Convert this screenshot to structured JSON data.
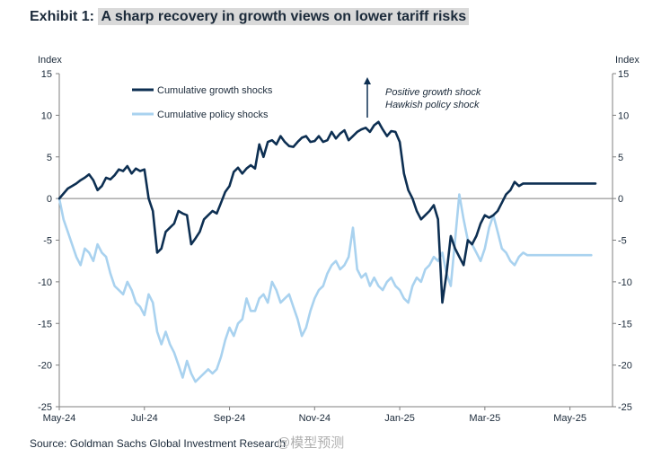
{
  "exhibit_label": "Exhibit 1:",
  "title": "A sharp recovery in growth views on lower tariff risks",
  "source": "Source: Goldman Sachs Global Investment Research",
  "watermark": "@模型预测",
  "chart_data": {
    "type": "line",
    "title": "A sharp recovery in growth views on lower tariff risks",
    "ylabel_left": "Index",
    "ylabel_right": "Index",
    "ylim": [
      -25,
      15
    ],
    "yticks": [
      15,
      10,
      5,
      0,
      -5,
      -10,
      -15,
      -20,
      -25
    ],
    "xlim": [
      0,
      13
    ],
    "xticks": [
      {
        "label": "May-24",
        "x": 0
      },
      {
        "label": "Jul-24",
        "x": 2
      },
      {
        "label": "Sep-24",
        "x": 4
      },
      {
        "label": "Nov-24",
        "x": 6
      },
      {
        "label": "Jan-25",
        "x": 8
      },
      {
        "label": "Mar-25",
        "x": 10
      },
      {
        "label": "May-25",
        "x": 12
      }
    ],
    "annotation_lines": [
      "Positive growth shock",
      "Hawkish policy shock"
    ],
    "colors": {
      "growth": "#0d2f52",
      "policy": "#a9d2ef",
      "axis": "#7f7f7f",
      "text": "#1b2a3a"
    },
    "series": [
      {
        "name": "Cumulative growth shocks",
        "x": [
          0,
          0.1,
          0.2,
          0.3,
          0.4,
          0.5,
          0.6,
          0.7,
          0.8,
          0.9,
          1.0,
          1.1,
          1.2,
          1.3,
          1.4,
          1.5,
          1.6,
          1.7,
          1.8,
          1.9,
          2.0,
          2.1,
          2.2,
          2.3,
          2.4,
          2.5,
          2.6,
          2.7,
          2.8,
          2.9,
          3.0,
          3.1,
          3.2,
          3.3,
          3.4,
          3.5,
          3.6,
          3.7,
          3.8,
          3.9,
          4.0,
          4.1,
          4.2,
          4.3,
          4.4,
          4.5,
          4.6,
          4.7,
          4.8,
          4.9,
          5.0,
          5.1,
          5.2,
          5.3,
          5.4,
          5.5,
          5.6,
          5.7,
          5.8,
          5.9,
          6.0,
          6.1,
          6.2,
          6.3,
          6.4,
          6.5,
          6.6,
          6.7,
          6.8,
          6.9,
          7.0,
          7.1,
          7.2,
          7.3,
          7.4,
          7.5,
          7.6,
          7.7,
          7.8,
          7.9,
          8.0,
          8.1,
          8.2,
          8.3,
          8.4,
          8.5,
          8.6,
          8.7,
          8.8,
          8.9,
          9.0,
          9.1,
          9.2,
          9.3,
          9.4,
          9.5,
          9.6,
          9.7,
          9.8,
          9.9,
          10.0,
          10.1,
          10.2,
          10.3,
          10.4,
          10.5,
          10.6,
          10.7,
          10.8,
          10.9,
          11.0,
          11.1,
          11.2,
          11.3,
          11.4,
          11.5,
          11.6,
          11.7,
          11.8,
          11.9,
          12.0,
          12.1,
          12.2,
          12.3,
          12.4,
          12.5,
          12.6
        ],
        "values": [
          0,
          0.6,
          1.2,
          1.5,
          1.8,
          2.2,
          2.5,
          2.9,
          2.2,
          1.0,
          1.5,
          2.5,
          2.3,
          2.8,
          3.5,
          3.3,
          3.9,
          3.0,
          3.6,
          3.3,
          3.5,
          0.0,
          -1.5,
          -6.5,
          -6.0,
          -4.0,
          -3.5,
          -3.0,
          -1.5,
          -1.8,
          -2.0,
          -5.5,
          -4.8,
          -4.0,
          -2.5,
          -2.0,
          -1.5,
          -1.8,
          -0.5,
          0.8,
          1.5,
          3.2,
          3.7,
          3.0,
          3.6,
          4.0,
          3.6,
          6.5,
          5.0,
          6.8,
          7.0,
          6.5,
          7.5,
          6.8,
          6.3,
          6.2,
          6.8,
          7.3,
          7.5,
          6.8,
          6.9,
          7.5,
          6.8,
          7.0,
          8.0,
          7.2,
          7.8,
          8.2,
          7.0,
          7.5,
          8.0,
          8.3,
          8.5,
          8.0,
          8.8,
          9.2,
          8.3,
          7.5,
          8.1,
          8.0,
          6.8,
          3.0,
          1.0,
          0.0,
          -1.5,
          -2.5,
          -2.0,
          -1.5,
          -0.8,
          -2.5,
          -12.5,
          -9.0,
          -4.5,
          -6.0,
          -7.0,
          -8.0,
          -5.0,
          -5.5,
          -4.5,
          -3.0,
          -2.0,
          -2.3,
          -2.0,
          -1.5,
          -0.5,
          0.5,
          1.0,
          2.0,
          1.5,
          1.8,
          1.8,
          1.8,
          1.8,
          1.8,
          1.8,
          1.8,
          1.8,
          1.8,
          1.8,
          1.8,
          1.8,
          1.8,
          1.8,
          1.8,
          1.8,
          1.8,
          1.8
        ]
      },
      {
        "name": "Cumulative policy shocks",
        "x": [
          0,
          0.1,
          0.2,
          0.3,
          0.4,
          0.5,
          0.6,
          0.7,
          0.8,
          0.9,
          1.0,
          1.1,
          1.2,
          1.3,
          1.4,
          1.5,
          1.6,
          1.7,
          1.8,
          1.9,
          2.0,
          2.1,
          2.2,
          2.3,
          2.4,
          2.5,
          2.6,
          2.7,
          2.8,
          2.9,
          3.0,
          3.1,
          3.2,
          3.3,
          3.4,
          3.5,
          3.6,
          3.7,
          3.8,
          3.9,
          4.0,
          4.1,
          4.2,
          4.3,
          4.4,
          4.5,
          4.6,
          4.7,
          4.8,
          4.9,
          5.0,
          5.1,
          5.2,
          5.3,
          5.4,
          5.5,
          5.6,
          5.7,
          5.8,
          5.9,
          6.0,
          6.1,
          6.2,
          6.3,
          6.4,
          6.5,
          6.6,
          6.7,
          6.8,
          6.9,
          7.0,
          7.1,
          7.2,
          7.3,
          7.4,
          7.5,
          7.6,
          7.7,
          7.8,
          7.9,
          8.0,
          8.1,
          8.2,
          8.3,
          8.4,
          8.5,
          8.6,
          8.7,
          8.8,
          8.9,
          9.0,
          9.1,
          9.2,
          9.3,
          9.4,
          9.5,
          9.6,
          9.7,
          9.8,
          9.9,
          10.0,
          10.1,
          10.2,
          10.3,
          10.4,
          10.5,
          10.6,
          10.7,
          10.8,
          10.9,
          11.0,
          11.1,
          11.2,
          11.3,
          11.4,
          11.5,
          11.6,
          11.7,
          11.8,
          11.9,
          12.0,
          12.1,
          12.2,
          12.3,
          12.4,
          12.5
        ],
        "values": [
          0,
          -2.5,
          -4.0,
          -5.5,
          -7.0,
          -8.0,
          -6.0,
          -6.5,
          -7.5,
          -5.5,
          -6.5,
          -7.0,
          -9.0,
          -10.5,
          -11.0,
          -11.5,
          -10.0,
          -11.0,
          -12.5,
          -13.0,
          -14.0,
          -11.5,
          -12.5,
          -16.0,
          -17.5,
          -16.0,
          -17.5,
          -18.5,
          -20.0,
          -21.5,
          -19.5,
          -21.0,
          -22.0,
          -21.5,
          -21.0,
          -20.5,
          -21.0,
          -20.5,
          -19.0,
          -17.0,
          -15.5,
          -16.5,
          -15.0,
          -14.5,
          -12.0,
          -13.5,
          -13.5,
          -12.0,
          -11.5,
          -12.5,
          -10.0,
          -11.0,
          -12.5,
          -12.0,
          -11.5,
          -13.0,
          -14.5,
          -16.5,
          -15.5,
          -13.5,
          -12.0,
          -11.0,
          -10.5,
          -9.0,
          -8.0,
          -7.5,
          -8.5,
          -8.0,
          -7.0,
          -3.5,
          -8.5,
          -9.5,
          -9.0,
          -10.5,
          -9.5,
          -10.5,
          -11.0,
          -10.0,
          -9.5,
          -10.5,
          -11.0,
          -12.0,
          -12.5,
          -10.5,
          -9.5,
          -10.0,
          -8.5,
          -8.0,
          -7.0,
          -7.5,
          -6.5,
          -9.0,
          -10.5,
          -5.0,
          0.5,
          -2.5,
          -5.0,
          -5.5,
          -6.5,
          -7.5,
          -6.0,
          -3.5,
          -2.0,
          -4.0,
          -6.0,
          -6.5,
          -7.5,
          -8.0,
          -7.0,
          -6.5,
          -6.8,
          -6.8,
          -6.8,
          -6.8,
          -6.8,
          -6.8,
          -6.8,
          -6.8,
          -6.8,
          -6.8,
          -6.8,
          -6.8,
          -6.8,
          -6.8,
          -6.8,
          -6.8
        ]
      }
    ]
  }
}
